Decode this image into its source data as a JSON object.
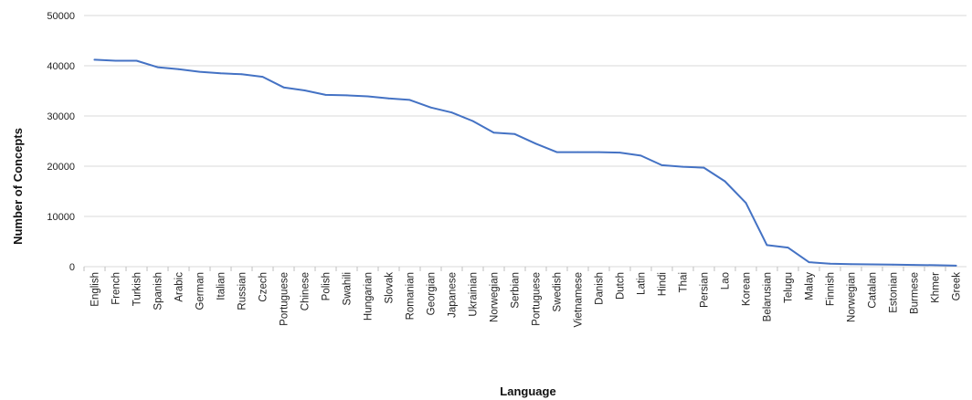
{
  "chart_data": {
    "type": "line",
    "title": "",
    "xlabel": "Language",
    "ylabel": "Number of Concepts",
    "ylim": [
      0,
      50000
    ],
    "yticks": [
      "0",
      "10000",
      "20000",
      "30000",
      "40000",
      "50000"
    ],
    "grid": true,
    "line_color": "#4472C4",
    "categories": [
      "English",
      "French",
      "Turkish",
      "Spanish",
      "Arabic",
      "German",
      "Italian",
      "Russian",
      "Czech",
      "Portuguese",
      "Chinese",
      "Polish",
      "Swahili",
      "Hungarian",
      "Slovak",
      "Romanian",
      "Georgian",
      "Japanese",
      "Ukrainian",
      "Norwegian",
      "Serbian",
      "Portuguese",
      "Swedish",
      "Vietnamese",
      "Danish",
      "Dutch",
      "Latin",
      "Hindi",
      "Thai",
      "Persian",
      "Lao",
      "Korean",
      "Belarusian",
      "Telugu",
      "Malay",
      "Finnish",
      "Norwegian",
      "Catalan",
      "Estonian",
      "Burmese",
      "Khmer",
      "Greek"
    ],
    "series": [
      {
        "values": [
          41200,
          41000,
          41000,
          39700,
          39300,
          38800,
          38500,
          38300,
          37800,
          35700,
          35100,
          34200,
          34100,
          33900,
          33500,
          33200,
          31700,
          30700,
          29000,
          26700,
          26400,
          24500,
          22800,
          22800,
          22800,
          22700,
          22100,
          20200,
          19900,
          19700,
          17000,
          12700,
          4300,
          3800,
          900,
          600,
          500,
          450,
          400,
          350,
          300,
          200
        ]
      }
    ]
  }
}
